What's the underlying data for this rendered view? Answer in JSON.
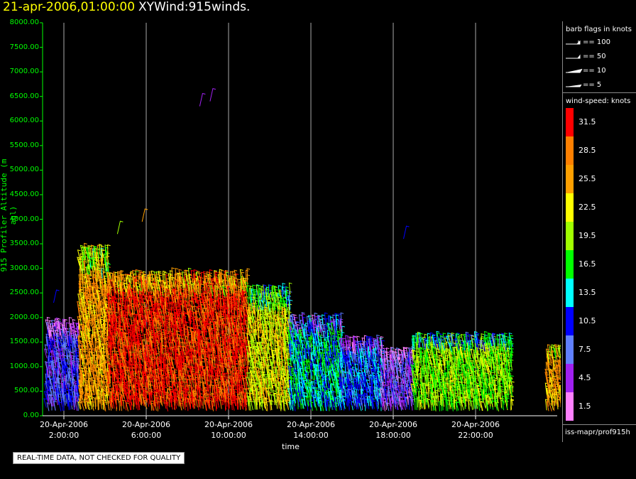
{
  "header": {
    "date": "21-apr-2006,01:00:00",
    "name": "XYWind:915winds."
  },
  "chart_data": {
    "type": "scatter",
    "title": "XYWind:915winds.",
    "xlabel": "time",
    "ylabel": "915 Profiler Altitude (m agl)",
    "ylim": [
      0,
      8000
    ],
    "y_ticks": [
      "0.00",
      "500.00",
      "1000.00",
      "1500.00",
      "2000.00",
      "2500.00",
      "3000.00",
      "3500.00",
      "4000.00",
      "4500.00",
      "5000.00",
      "5500.00",
      "6000.00",
      "6500.00",
      "7000.00",
      "7500.00",
      "8000.00"
    ],
    "x_ticks": [
      {
        "date": "20-Apr-2006",
        "time": "2:00:00",
        "hour": 2
      },
      {
        "date": "20-Apr-2006",
        "time": "6:00:00",
        "hour": 6
      },
      {
        "date": "20-Apr-2006",
        "time": "10:00:00",
        "hour": 10
      },
      {
        "date": "20-Apr-2006",
        "time": "14:00:00",
        "hour": 14
      },
      {
        "date": "20-Apr-2006",
        "time": "18:00:00",
        "hour": 18
      },
      {
        "date": "20-Apr-2006",
        "time": "22:00:00",
        "hour": 22
      }
    ],
    "xlim_hours": [
      1,
      25
    ],
    "grid": "vertical lines at each time tick",
    "wind_regions": [
      {
        "start_hour": 1.2,
        "end_hour": 2.8,
        "top_alt": 1800,
        "speed": 8
      },
      {
        "start_hour": 2.8,
        "end_hour": 4.2,
        "top_alt": 3300,
        "speed": 26
      },
      {
        "start_hour": 4.2,
        "end_hour": 11.0,
        "top_alt": 2800,
        "speed": 31
      },
      {
        "start_hour": 11.0,
        "end_hour": 13.0,
        "top_alt": 2500,
        "speed": 22
      },
      {
        "start_hour": 13.0,
        "end_hour": 15.5,
        "top_alt": 1900,
        "speed": 14
      },
      {
        "start_hour": 15.5,
        "end_hour": 17.5,
        "top_alt": 1400,
        "speed": 11
      },
      {
        "start_hour": 17.5,
        "end_hour": 19.0,
        "top_alt": 1200,
        "speed": 6
      },
      {
        "start_hour": 19.0,
        "end_hour": 23.8,
        "top_alt": 1500,
        "speed": 19
      },
      {
        "start_hour": 25.5,
        "end_hour": 26.8,
        "top_alt": 1300,
        "speed": 26
      }
    ]
  },
  "legend": {
    "barb_title": "barb flags in knots",
    "flags": [
      {
        "label": "== 100"
      },
      {
        "label": "== 50"
      },
      {
        "label": "== 10"
      },
      {
        "label": "== 5"
      }
    ],
    "speed_title": "wind-speed: knots",
    "scale": [
      {
        "label": "31.5",
        "color": "#ff0000"
      },
      {
        "label": "28.5",
        "color": "#ff8000"
      },
      {
        "label": "25.5",
        "color": "#ffa000"
      },
      {
        "label": "22.5",
        "color": "#ffff00"
      },
      {
        "label": "19.5",
        "color": "#a0ff00"
      },
      {
        "label": "16.5",
        "color": "#00ff00"
      },
      {
        "label": "13.5",
        "color": "#00ffff"
      },
      {
        "label": "10.5",
        "color": "#0000ff"
      },
      {
        "label": "7.5",
        "color": "#6080ff"
      },
      {
        "label": "4.5",
        "color": "#a020f0"
      },
      {
        "label": "1.5",
        "color": "#ff80ff"
      }
    ],
    "source": "iss-mapr/prof915h"
  },
  "notice": "REAL-TIME DATA, NOT CHECKED FOR QUALITY"
}
